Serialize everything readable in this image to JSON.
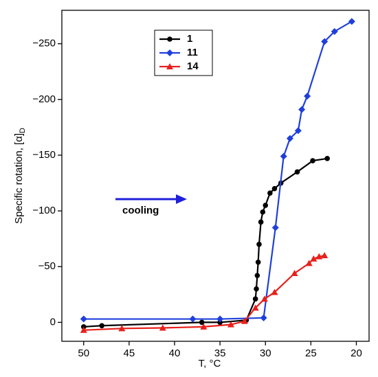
{
  "chart_data": {
    "type": "line",
    "x_label": "T, °C",
    "y_label": "Specific rotation, [α]",
    "y_label_sub": "D",
    "annotation": "cooling",
    "annotation_color": "#1f1fdc",
    "xlim": [
      52.4,
      18.6
    ],
    "ylim": [
      17,
      -280
    ],
    "xticks": [
      50,
      45,
      40,
      35,
      30,
      25,
      20
    ],
    "yticks": [
      0,
      {
        "value": -50,
        "label": "−50"
      },
      {
        "value": -100,
        "label": "−100"
      },
      {
        "value": -150,
        "label": "−150"
      },
      {
        "value": -200,
        "label": "−200"
      },
      {
        "value": -250,
        "label": "−250"
      }
    ],
    "series": [
      {
        "name": "1",
        "color": "#000000",
        "marker": "circle",
        "x": [
          50,
          48,
          37,
          35,
          32.1,
          31.1,
          31,
          30.9,
          30.8,
          30.7,
          30.5,
          30.3,
          30,
          29.5,
          29,
          28.3,
          26.5,
          24.8,
          23.2
        ],
        "values": [
          4,
          3,
          0,
          0,
          -2,
          -21,
          -30,
          -42,
          -54,
          -70,
          -90,
          -99,
          -105,
          -116,
          -120,
          -125,
          -135,
          -145,
          -147
        ]
      },
      {
        "name": "11",
        "color": "#1f3fdc",
        "marker": "diamond",
        "x": [
          50,
          38,
          35,
          30.2,
          28.9,
          28,
          27.3,
          26.4,
          26,
          25.4,
          23.5,
          22.4,
          20.5
        ],
        "values": [
          -3,
          -3,
          -3,
          -4,
          -85,
          -149,
          -165,
          -172,
          -191,
          -203,
          -252,
          -261,
          -270
        ]
      },
      {
        "name": "14",
        "color": "#e8201c",
        "marker": "triangle",
        "x": [
          50,
          45.8,
          41.3,
          36.8,
          33.8,
          32.3,
          31.1,
          30.1,
          29,
          26.8,
          25.2,
          24.7,
          24.1,
          23.5
        ],
        "values": [
          7,
          5.5,
          5,
          4,
          2,
          -1,
          -13,
          -21,
          -27,
          -44,
          -53,
          -57,
          -59,
          -60
        ]
      }
    ]
  }
}
